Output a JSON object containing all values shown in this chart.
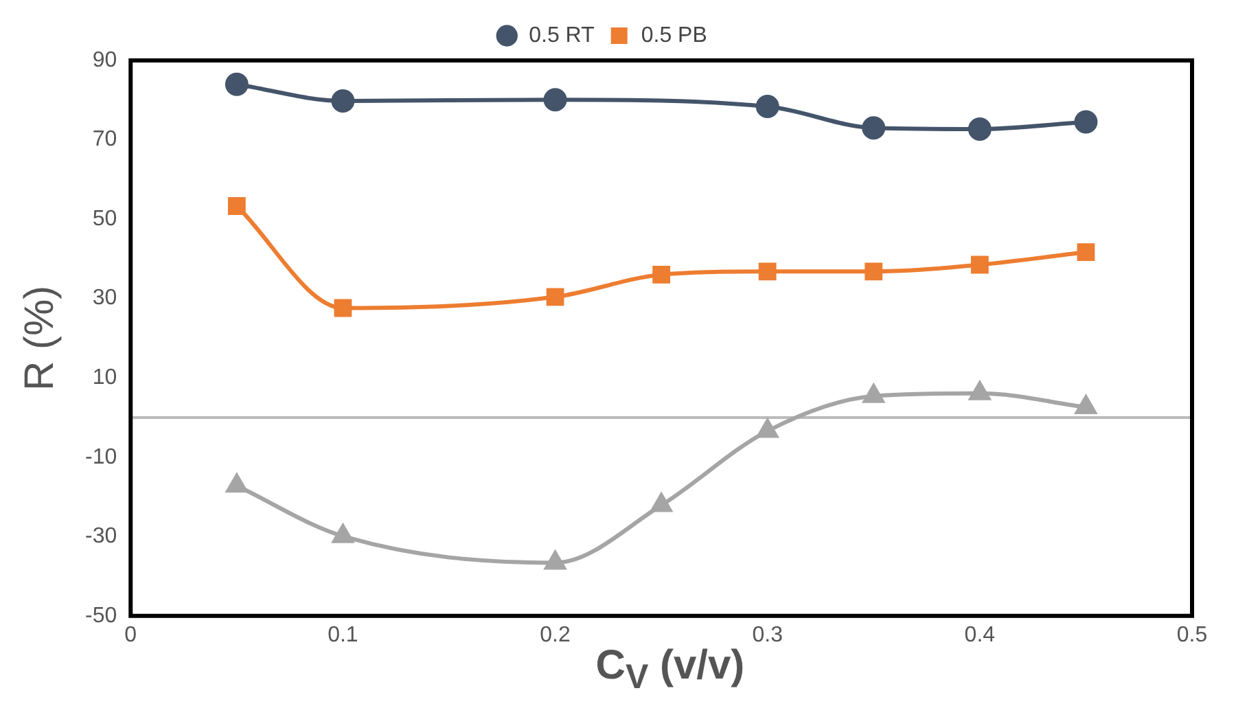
{
  "chart_data": {
    "type": "line",
    "xlabel": "C$_{V}$ (v/v)",
    "ylabel": "R (%)",
    "xlim": [
      0,
      0.5
    ],
    "xticks": [
      0,
      0.1,
      0.2,
      0.3,
      0.4,
      0.5
    ],
    "ylim": [
      -50,
      90
    ],
    "yticks": [
      -50,
      -30,
      -10,
      10,
      30,
      50,
      70,
      90
    ],
    "grid": false,
    "legend": "top",
    "series": [
      {
        "color": "#a5a5a5",
        "marker": "triangle",
        "x": [
          0.05,
          0.1,
          0.2,
          0.25,
          0.3,
          0.35,
          0.4,
          0.45
        ],
        "values": [
          -17.2,
          -29.9,
          -36.6,
          -22.1,
          -3.4,
          5.4,
          6.1,
          2.6
        ]
      },
      {
        "name": "0.5 RT",
        "color": "#44546a",
        "marker": "circle",
        "x": [
          0.05,
          0.1,
          0.2,
          0.3,
          0.35,
          0.4,
          0.45
        ],
        "values": [
          84,
          79.8,
          80.1,
          78.4,
          73,
          72.7,
          74.5
        ]
      },
      {
        "name": "0.5 PB",
        "color": "#ed7d31",
        "marker": "square",
        "x": [
          0.05,
          0.1,
          0.2,
          0.25,
          0.3,
          0.35,
          0.4,
          0.45
        ],
        "values": [
          53.3,
          27.6,
          30.4,
          36,
          36.8,
          36.8,
          38.5,
          41.7
        ]
      }
    ]
  }
}
